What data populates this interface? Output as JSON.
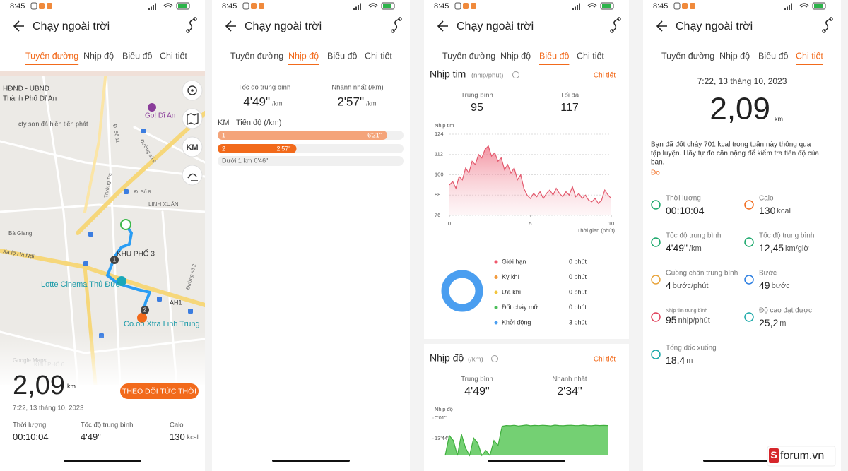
{
  "screens": [
    {
      "time": "8:45",
      "title": "Chạy ngoài trời",
      "tabs": [
        "Tuyến đường",
        "Nhịp độ",
        "Biểu đồ",
        "Chi tiết"
      ],
      "active_tab": 0,
      "map": {
        "labels": [
          "HĐND - UBND",
          "Thành Phố Dĩ An",
          "Go! Dĩ An",
          "cty sơn đá hiền tiến phát",
          "Đ. Số 11",
          "Đường số 9",
          "Trường Tre",
          "Đ. Số 8",
          "LINH XUÂN",
          "Bà Giang",
          "Xa lộ Hà Nội",
          "KHU PHỐ 3",
          "Lotte Cinema Thủ Đức",
          "Đường số 2",
          "AH1",
          "Co.op Xtra Linh Trung",
          "KHU PHỐ 6"
        ],
        "markers": [
          "1",
          "2"
        ],
        "controls": [
          "KM"
        ],
        "attribution": "Google Maps"
      },
      "live_button": "THEO DÕI TỨC THỜI",
      "distance": "2,09",
      "distance_unit": "km",
      "date": "7:22, 13 tháng 10, 2023",
      "stats": [
        {
          "label": "Thời lượng",
          "value": "00:10:04"
        },
        {
          "label": "Tốc độ trung bình",
          "value": "4'49\""
        },
        {
          "label": "Calo",
          "value": "130",
          "unit": "kcal"
        }
      ]
    },
    {
      "time": "8:45",
      "title": "Chạy ngoài trời",
      "tabs": [
        "Tuyến đường",
        "Nhịp độ",
        "Biểu đồ",
        "Chi tiết"
      ],
      "active_tab": 1,
      "summary": [
        {
          "label": "Tốc độ trung bình",
          "value": "4'49\"",
          "unit": "/km"
        },
        {
          "label": "Nhanh nhất (/km)",
          "value": "2'57\"",
          "unit": "/km"
        }
      ],
      "splits_header": [
        "KM",
        "Tiến độ (/km)"
      ],
      "splits": [
        {
          "km": 1,
          "pace": 381,
          "pace_label": "6'21\""
        },
        {
          "km": 2,
          "pace": 177,
          "pace_label": "2'57\""
        }
      ],
      "remainder": {
        "label": "Dưới 1 km",
        "pace": "0'46\""
      }
    },
    {
      "time": "8:45",
      "title": "Chạy ngoài trời",
      "tabs": [
        "Tuyến đường",
        "Nhịp độ",
        "Biểu đồ",
        "Chi tiết"
      ],
      "active_tab": 2,
      "heart_rate": {
        "title": "Nhịp tim",
        "unit": "(nhịp/phút)",
        "link": "Chi tiết",
        "stats": [
          {
            "label": "Trung bình",
            "value": 95
          },
          {
            "label": "Tối đa",
            "value": 117
          }
        ],
        "chart": {
          "type": "area",
          "ylabel": "Nhịp tim",
          "xlabel": "Thời gian (phút)",
          "color": "#e35a6e",
          "x": [
            0,
            0.2,
            0.4,
            0.6,
            0.8,
            1,
            1.2,
            1.4,
            1.6,
            1.8,
            2,
            2.2,
            2.4,
            2.6,
            2.8,
            3,
            3.2,
            3.4,
            3.6,
            3.8,
            4,
            4.2,
            4.4,
            4.6,
            4.8,
            5,
            5.2,
            5.4,
            5.6,
            5.8,
            6,
            6.2,
            6.4,
            6.6,
            6.8,
            7,
            7.2,
            7.4,
            7.6,
            7.8,
            8,
            8.2,
            8.4,
            8.6,
            8.8,
            9,
            9.2,
            9.4,
            9.6,
            9.8,
            10
          ],
          "values": [
            94,
            96,
            92,
            99,
            97,
            104,
            101,
            108,
            106,
            112,
            110,
            115,
            117,
            111,
            113,
            108,
            110,
            103,
            106,
            101,
            104,
            97,
            100,
            92,
            88,
            86,
            89,
            87,
            90,
            86,
            89,
            91,
            88,
            92,
            89,
            87,
            90,
            88,
            93,
            87,
            89,
            86,
            88,
            85,
            84,
            86,
            83,
            85,
            91,
            88,
            86
          ],
          "xlim": [
            0,
            10
          ],
          "ylim": [
            76,
            124
          ],
          "xticks": [
            0,
            5,
            10
          ],
          "yticks": [
            76,
            88,
            100,
            112,
            124
          ],
          "grid": true
        },
        "zones": {
          "type": "donut",
          "categories": [
            "Giới hạn",
            "Kỵ khí",
            "Ưa khí",
            "Đốt cháy mỡ",
            "Khởi động"
          ],
          "values": [
            0,
            0,
            0,
            0,
            3
          ],
          "value_labels": [
            "0 phút",
            "0 phút",
            "0 phút",
            "0 phút",
            "3 phút"
          ],
          "colors": [
            "#f0566a",
            "#f29a3c",
            "#f2c53c",
            "#4cbe5a",
            "#4a9ef0"
          ]
        }
      },
      "pace": {
        "title": "Nhịp độ",
        "unit": "(/km)",
        "link": "Chi tiết",
        "stats": [
          {
            "label": "Trung bình",
            "value": "4'49\""
          },
          {
            "label": "Nhanh nhất",
            "value": "2'34\""
          }
        ],
        "chart": {
          "type": "area",
          "ylabel": "Nhịp độ",
          "color": "#5cc85a",
          "x": [
            0,
            0.25,
            0.5,
            0.75,
            1,
            1.25,
            1.5,
            1.75,
            2,
            2.25,
            2.5,
            2.75,
            3,
            3.25,
            3.5,
            3.75,
            4,
            4.25,
            4.5,
            4.75,
            5,
            5.25,
            5.5,
            5.75,
            6,
            6.25,
            6.5,
            6.75,
            7,
            7.25,
            7.5,
            7.75,
            8,
            8.25,
            8.5,
            8.75,
            9,
            9.25,
            9.5,
            9.75,
            10
          ],
          "values": [
            1500,
            700,
            900,
            1500,
            650,
            1200,
            1500,
            800,
            1000,
            1500,
            1300,
            1500,
            900,
            1100,
            330,
            300,
            310,
            290,
            320,
            300,
            280,
            310,
            295,
            305,
            290,
            300,
            315,
            285,
            300,
            310,
            295,
            290,
            305,
            300,
            285,
            300,
            310,
            290,
            300,
            295,
            300
          ],
          "xlim": [
            0,
            10
          ],
          "ylim": [
            1500,
            1
          ],
          "yticks": [
            {
              "value": 1,
              "label": "0'01\""
            },
            {
              "value": 824,
              "label": "13'44\""
            }
          ]
        }
      }
    },
    {
      "time": "8:45",
      "title": "Chạy ngoài trời",
      "tabs": [
        "Tuyến đường",
        "Nhịp độ",
        "Biểu đồ",
        "Chi tiết"
      ],
      "active_tab": 3,
      "date": "7:22, 13 tháng 10, 2023",
      "distance": "2,09",
      "distance_unit": "km",
      "note_lines": [
        "Bạn đã đốt cháy 701 kcal trong tuần này thông qua",
        "tập luyện. Hãy tự đo cân nặng để kiểm tra tiến độ của",
        "bạn."
      ],
      "note_link": "Đo",
      "stats": [
        {
          "label": "Thời lượng",
          "value": "00:10:04"
        },
        {
          "label": "Calo",
          "value": "130",
          "unit": "kcal"
        },
        {
          "label": "Tốc độ trung bình",
          "value": "4'49\"",
          "unit": "/km"
        },
        {
          "label": "Tốc độ trung bình",
          "value": "12,45",
          "unit": "km/giờ"
        },
        {
          "label": "Guồng chân trung bình",
          "value": "4",
          "unit": "bước/phút"
        },
        {
          "label": "Bước",
          "value": "49",
          "unit": "bước"
        },
        {
          "label": "Nhịp tim trung bình",
          "value": "95",
          "unit": "nhịp/phút"
        },
        {
          "label": "Độ cao đạt được",
          "value": "25,2",
          "unit": "m"
        },
        {
          "label": "Tổng dốc xuống",
          "value": "18,4",
          "unit": "m"
        }
      ]
    }
  ],
  "watermark": {
    "logo": "S",
    "text": "forum.vn"
  }
}
